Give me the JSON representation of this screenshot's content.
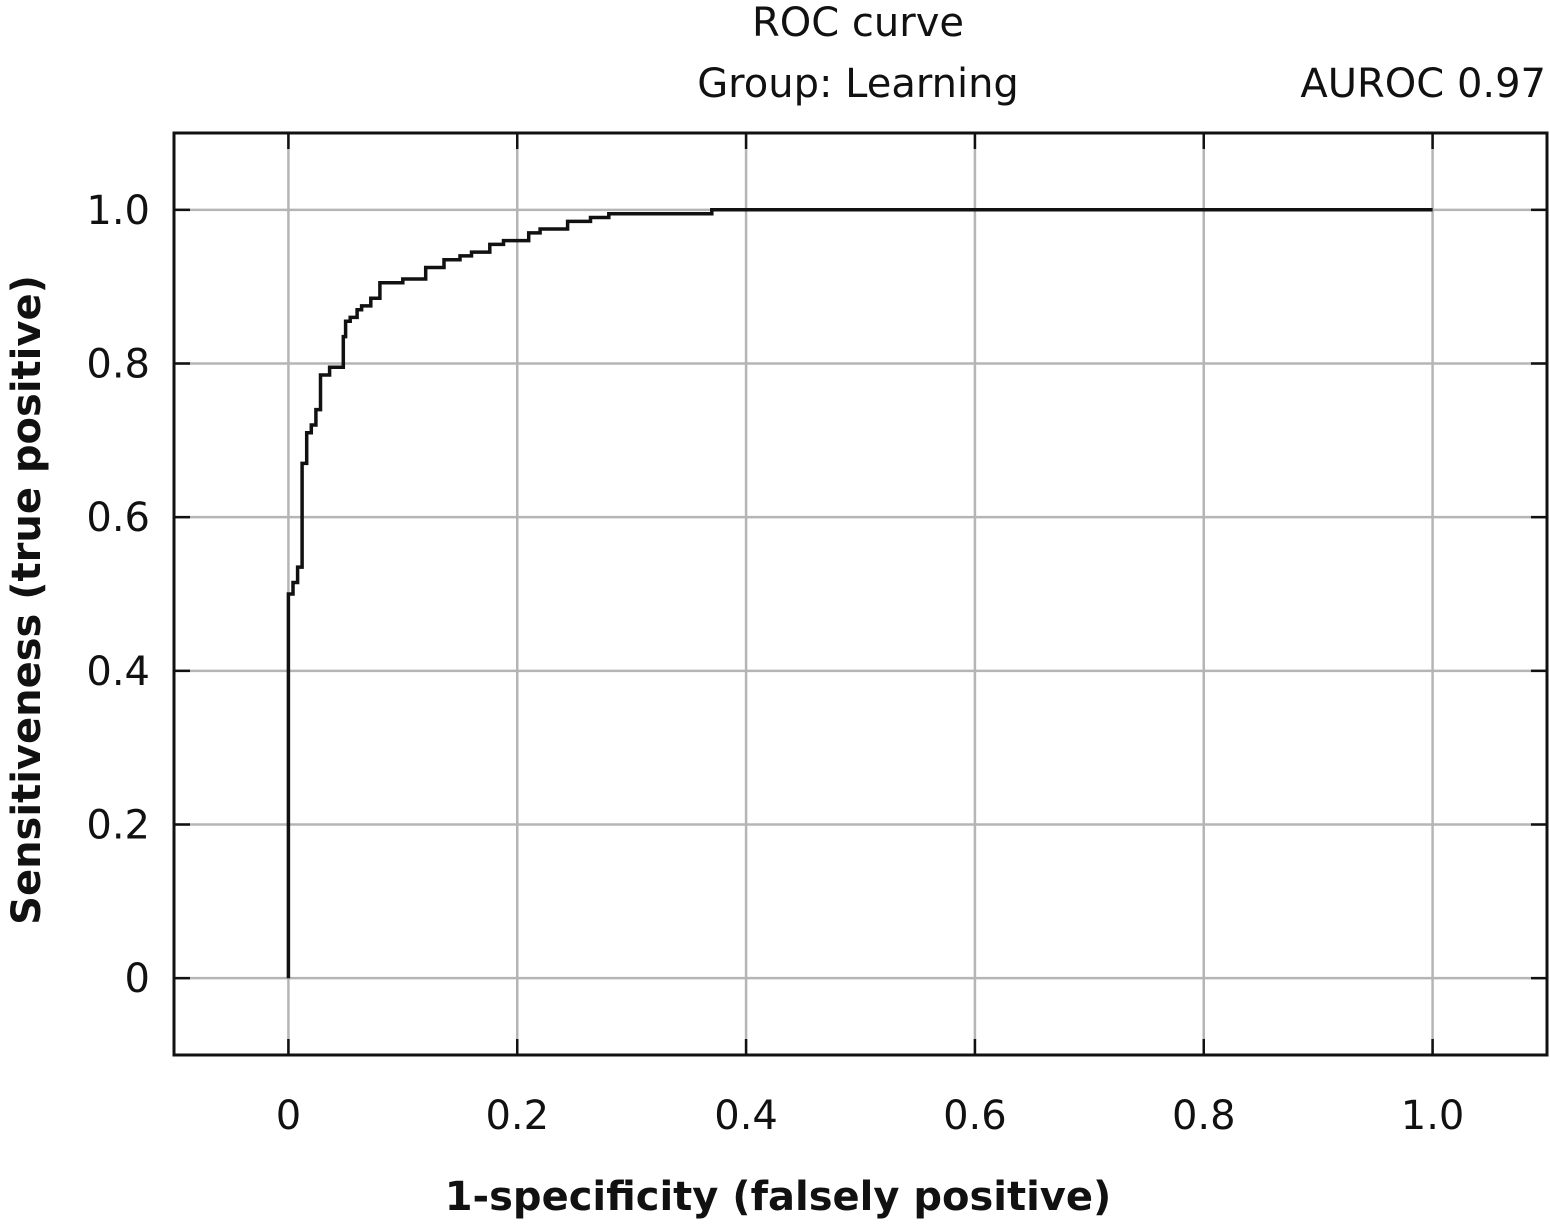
{
  "chart_data": {
    "type": "line",
    "title": "ROC curve",
    "subtitle": "Group: Learning",
    "annotation": "AUROC 0.97",
    "xlabel": "1-specificity (falsely positive)",
    "ylabel": "Sensitiveness (true positive)",
    "xlim": [
      -0.1,
      1.1
    ],
    "ylim": [
      -0.1,
      1.1
    ],
    "x_ticks": [
      0,
      0.2,
      0.4,
      0.6,
      0.8,
      1.0
    ],
    "x_tick_labels": [
      "0",
      "0.2",
      "0.4",
      "0.6",
      "0.8",
      "1.0"
    ],
    "y_ticks": [
      0,
      0.2,
      0.4,
      0.6,
      0.8,
      1.0
    ],
    "y_tick_labels": [
      "0",
      "0.2",
      "0.4",
      "0.6",
      "0.8",
      "1.0"
    ],
    "grid": true,
    "line_color": "#111111",
    "grid_color": "#b5b5b5",
    "series": [
      {
        "points": [
          [
            0.0,
            0.0
          ],
          [
            0.0,
            0.5
          ],
          [
            0.004,
            0.5
          ],
          [
            0.004,
            0.515
          ],
          [
            0.008,
            0.515
          ],
          [
            0.008,
            0.535
          ],
          [
            0.012,
            0.535
          ],
          [
            0.012,
            0.67
          ],
          [
            0.016,
            0.67
          ],
          [
            0.016,
            0.71
          ],
          [
            0.02,
            0.71
          ],
          [
            0.02,
            0.72
          ],
          [
            0.024,
            0.72
          ],
          [
            0.024,
            0.74
          ],
          [
            0.028,
            0.74
          ],
          [
            0.028,
            0.785
          ],
          [
            0.036,
            0.785
          ],
          [
            0.036,
            0.795
          ],
          [
            0.048,
            0.795
          ],
          [
            0.048,
            0.835
          ],
          [
            0.05,
            0.835
          ],
          [
            0.05,
            0.855
          ],
          [
            0.054,
            0.855
          ],
          [
            0.054,
            0.86
          ],
          [
            0.06,
            0.86
          ],
          [
            0.06,
            0.87
          ],
          [
            0.064,
            0.87
          ],
          [
            0.064,
            0.875
          ],
          [
            0.072,
            0.875
          ],
          [
            0.072,
            0.885
          ],
          [
            0.08,
            0.885
          ],
          [
            0.08,
            0.905
          ],
          [
            0.1,
            0.905
          ],
          [
            0.1,
            0.91
          ],
          [
            0.12,
            0.91
          ],
          [
            0.12,
            0.925
          ],
          [
            0.136,
            0.925
          ],
          [
            0.136,
            0.935
          ],
          [
            0.15,
            0.935
          ],
          [
            0.15,
            0.94
          ],
          [
            0.16,
            0.94
          ],
          [
            0.16,
            0.945
          ],
          [
            0.176,
            0.945
          ],
          [
            0.176,
            0.955
          ],
          [
            0.188,
            0.955
          ],
          [
            0.188,
            0.96
          ],
          [
            0.21,
            0.96
          ],
          [
            0.21,
            0.97
          ],
          [
            0.22,
            0.97
          ],
          [
            0.22,
            0.975
          ],
          [
            0.244,
            0.975
          ],
          [
            0.244,
            0.985
          ],
          [
            0.264,
            0.985
          ],
          [
            0.264,
            0.99
          ],
          [
            0.28,
            0.99
          ],
          [
            0.28,
            0.995
          ],
          [
            0.37,
            0.995
          ],
          [
            0.37,
            1.0
          ],
          [
            1.0,
            1.0
          ]
        ]
      }
    ]
  }
}
